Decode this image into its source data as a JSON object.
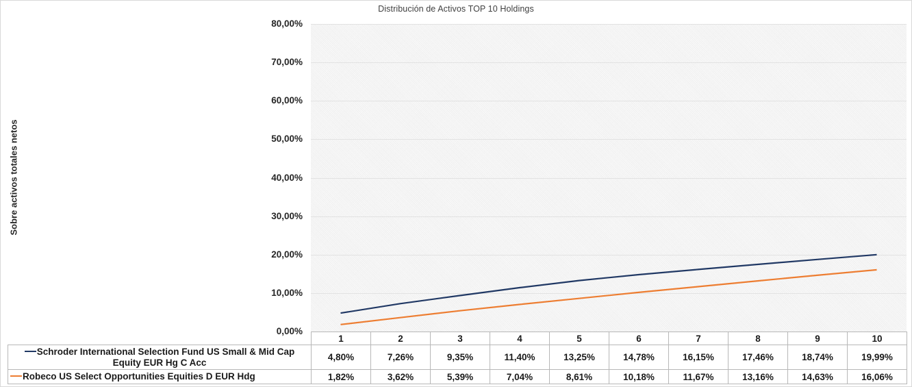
{
  "chart": {
    "title": "Distribución de Activos TOP 10 Holdings",
    "y_axis_title": "Sobre activos totales netos",
    "y_ticks": [
      "80,00%",
      "70,00%",
      "60,00%",
      "50,00%",
      "40,00%",
      "30,00%",
      "20,00%",
      "10,00%",
      "0,00%"
    ]
  },
  "chart_data": {
    "type": "line",
    "title": "Distribución de Activos TOP 10 Holdings",
    "xlabel": "",
    "ylabel": "Sobre activos totales netos",
    "categories": [
      "1",
      "2",
      "3",
      "4",
      "5",
      "6",
      "7",
      "8",
      "9",
      "10"
    ],
    "ylim": [
      0,
      80
    ],
    "y_tick_step": 10,
    "grid": true,
    "legend_position": "data-table-left",
    "plot_background": "#f3f3f3",
    "gridline_color": "#e2e2e2",
    "series": [
      {
        "name": "Schroder International Selection Fund US Small & Mid Cap Equity EUR Hg C Acc",
        "color": "#203864",
        "values": [
          4.8,
          7.26,
          9.35,
          11.4,
          13.25,
          14.78,
          16.15,
          17.46,
          18.74,
          19.99
        ],
        "labels": [
          "4,80%",
          "7,26%",
          "9,35%",
          "11,40%",
          "13,25%",
          "14,78%",
          "16,15%",
          "17,46%",
          "18,74%",
          "19,99%"
        ]
      },
      {
        "name": "Robeco US Select Opportunities Equities D EUR Hdg",
        "color": "#ED7D31",
        "values": [
          1.82,
          3.62,
          5.39,
          7.04,
          8.61,
          10.18,
          11.67,
          13.16,
          14.63,
          16.06
        ],
        "labels": [
          "1,82%",
          "3,62%",
          "5,39%",
          "7,04%",
          "8,61%",
          "10,18%",
          "11,67%",
          "13,16%",
          "14,63%",
          "16,06%"
        ]
      }
    ]
  }
}
